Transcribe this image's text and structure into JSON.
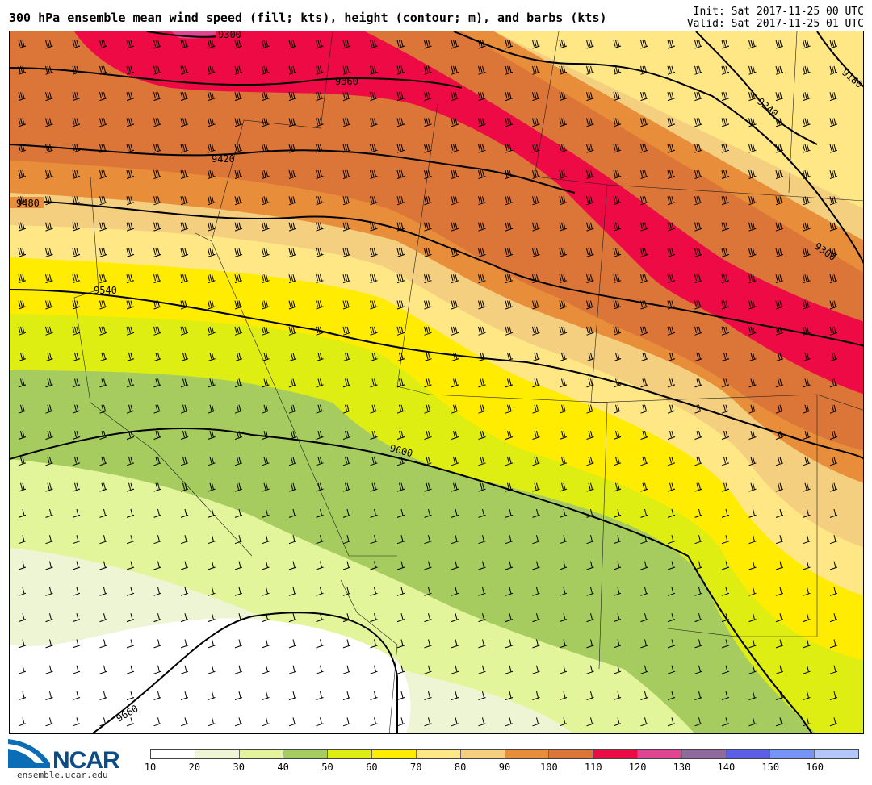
{
  "header": {
    "title": "300 hPa ensemble mean wind speed (fill; kts), height (contour; m), and barbs (kts)",
    "init": "Init: Sat 2017-11-25 00 UTC",
    "valid": "Valid: Sat 2017-11-25 01 UTC"
  },
  "map": {
    "contour_labels": [
      "9300",
      "9360",
      "9420",
      "9480",
      "9540",
      "9600",
      "9660",
      "9240",
      "9180",
      "9300"
    ],
    "contour_color": "#000000",
    "barb_color": "#000000"
  },
  "colorbar": {
    "ticks": [
      "10",
      "20",
      "30",
      "40",
      "50",
      "60",
      "70",
      "80",
      "90",
      "100",
      "110",
      "120",
      "130",
      "140",
      "150",
      "160"
    ],
    "colors": [
      "#ffffff",
      "#eef5d4",
      "#e3f59a",
      "#a6cc60",
      "#deed12",
      "#ffec00",
      "#ffe786",
      "#f3cf7f",
      "#e88d39",
      "#db7538",
      "#ee0a45",
      "#e14490",
      "#8f6a9e",
      "#5c5ee8",
      "#7693f6",
      "#b3c8f8"
    ]
  },
  "branding": {
    "logo_text": "NCAR",
    "url": "ensemble.ucar.edu"
  }
}
